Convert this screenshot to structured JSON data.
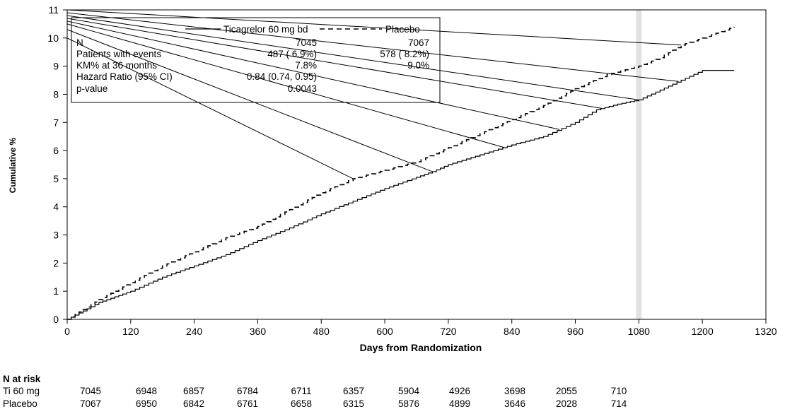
{
  "chart_data": {
    "type": "line",
    "xlabel": "Days from Randomization",
    "ylabel": "Cumulative %",
    "xlim": [
      0,
      1320
    ],
    "ylim": [
      0,
      11
    ],
    "x_ticks": [
      0,
      120,
      240,
      360,
      480,
      600,
      720,
      840,
      960,
      1080,
      1200,
      1320
    ],
    "y_ticks": [
      0,
      1,
      2,
      3,
      4,
      5,
      6,
      7,
      8,
      9,
      10,
      11
    ],
    "grid": false,
    "reference_band_x": 1080,
    "series": [
      {
        "name": "Ticagrelor 60 mg bd",
        "line_style": "solid",
        "x": [
          0,
          30,
          60,
          90,
          120,
          180,
          240,
          300,
          360,
          420,
          480,
          540,
          600,
          660,
          690,
          720,
          780,
          840,
          900,
          960,
          1000,
          1040,
          1080,
          1120,
          1160,
          1200,
          1260
        ],
        "y": [
          0,
          0.3,
          0.6,
          0.8,
          1.0,
          1.5,
          1.9,
          2.3,
          2.8,
          3.25,
          3.75,
          4.2,
          4.65,
          5.05,
          5.25,
          5.5,
          5.85,
          6.2,
          6.5,
          7.0,
          7.45,
          7.65,
          7.8,
          8.15,
          8.5,
          8.85,
          8.85
        ]
      },
      {
        "name": "Placebo",
        "line_style": "dashed",
        "x": [
          0,
          30,
          60,
          90,
          120,
          180,
          240,
          300,
          360,
          420,
          480,
          540,
          600,
          660,
          720,
          780,
          840,
          900,
          960,
          1020,
          1080,
          1120,
          1160,
          1200,
          1260
        ],
        "y": [
          0,
          0.35,
          0.7,
          1.0,
          1.3,
          1.9,
          2.4,
          2.9,
          3.3,
          3.9,
          4.5,
          5.0,
          5.3,
          5.6,
          6.1,
          6.6,
          7.1,
          7.6,
          8.2,
          8.7,
          9.0,
          9.3,
          9.75,
          10.0,
          10.4
        ]
      }
    ],
    "legend": {
      "placement": "top-left",
      "columns": [
        "",
        "Ticagrelor 60 mg bd",
        "Placebo"
      ],
      "rows": [
        [
          "N",
          "7045",
          "7067"
        ],
        [
          "Patients with events",
          "487 ( 6.9%)",
          "578 ( 8.2%)"
        ],
        [
          "KM% at 36 months",
          "7.8%",
          "9.0%"
        ],
        [
          "Hazard Ratio (95% CI)",
          "0.84 (0.74, 0.95)",
          ""
        ],
        [
          "p-value",
          "0.0043",
          ""
        ]
      ]
    },
    "risk_table": {
      "title": "N at risk",
      "rows": [
        {
          "label": "Ti 60 mg",
          "values": [
            "7045",
            "6948",
            "6857",
            "6784",
            "6711",
            "6357",
            "5904",
            "4926",
            "3698",
            "2055",
            "710"
          ]
        },
        {
          "label": "Placebo",
          "values": [
            "7067",
            "6950",
            "6842",
            "6761",
            "6658",
            "6315",
            "5876",
            "4899",
            "3646",
            "2028",
            "714"
          ]
        }
      ]
    }
  }
}
